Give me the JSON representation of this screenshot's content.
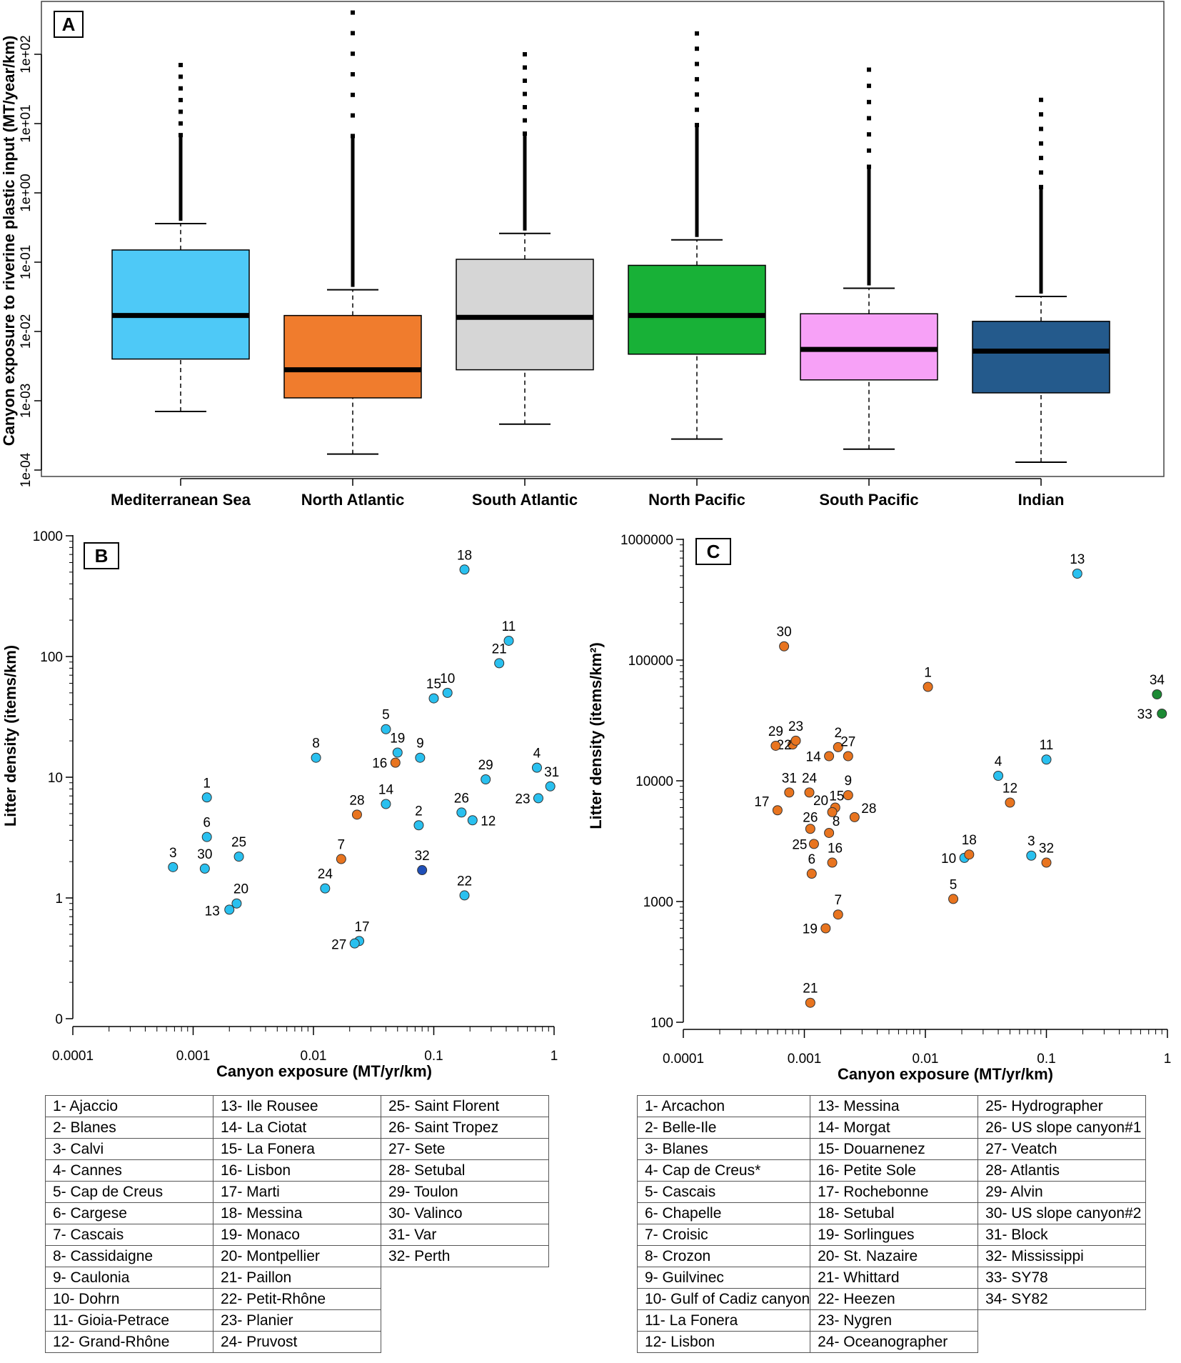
{
  "panel_a": {
    "label": "A",
    "ylabel": "Canyon exposure to riverine plastic input (MT/year/km)",
    "y_ticks": [
      "1e-04",
      "1e-03",
      "1e-02",
      "1e-01",
      "1e+00",
      "1e+01",
      "1e+02"
    ],
    "chart_data": {
      "type": "box",
      "yscale": "log10",
      "ylim": [
        0.0001,
        500
      ],
      "boxes": [
        {
          "name": "Mediterranean Sea",
          "color": "#4ec9f7",
          "whisker_low": 0.0007,
          "q1": 0.004,
          "median": 0.017,
          "q3": 0.15,
          "whisker_high": 0.36,
          "outlier_max": 70
        },
        {
          "name": "North Atlantic",
          "color": "#f07c2d",
          "whisker_low": 0.00017,
          "q1": 0.0011,
          "median": 0.0028,
          "q3": 0.017,
          "whisker_high": 0.04,
          "outlier_max": 400
        },
        {
          "name": "South Atlantic",
          "color": "#d6d6d6",
          "whisker_low": 0.00046,
          "q1": 0.0028,
          "median": 0.016,
          "q3": 0.11,
          "whisker_high": 0.26,
          "outlier_max": 100
        },
        {
          "name": "North Pacific",
          "color": "#18b137",
          "whisker_low": 0.00028,
          "q1": 0.0047,
          "median": 0.017,
          "q3": 0.09,
          "whisker_high": 0.21,
          "outlier_max": 200
        },
        {
          "name": "South Pacific",
          "color": "#f7a1f7",
          "whisker_low": 0.0002,
          "q1": 0.002,
          "median": 0.0055,
          "q3": 0.018,
          "whisker_high": 0.042,
          "outlier_max": 60
        },
        {
          "name": "Indian",
          "color": "#245a8c",
          "whisker_low": 0.00013,
          "q1": 0.0013,
          "median": 0.0052,
          "q3": 0.014,
          "whisker_high": 0.032,
          "outlier_max": 22
        }
      ]
    }
  },
  "panel_b": {
    "label": "B",
    "xlabel": "Canyon exposure (MT/yr/km)",
    "ylabel": "Litter density (items/km)",
    "x_ticks": [
      "0.0001",
      "0.001",
      "0.01",
      "0.1",
      "1"
    ],
    "y_ticks": [
      "0",
      "1",
      "10",
      "100",
      "1000"
    ],
    "chart_data": {
      "type": "scatter",
      "xscale": "log10",
      "yscale": "log10",
      "xlim": [
        0.0001,
        1
      ],
      "points": [
        {
          "id": "1",
          "x": 0.0013,
          "y": 6.8,
          "color": "#29c0ef"
        },
        {
          "id": "2",
          "x": 0.075,
          "y": 4.0,
          "color": "#29c0ef"
        },
        {
          "id": "3",
          "x": 0.00068,
          "y": 1.8,
          "color": "#29c0ef"
        },
        {
          "id": "4",
          "x": 0.72,
          "y": 12,
          "color": "#29c0ef"
        },
        {
          "id": "5",
          "x": 0.04,
          "y": 25,
          "color": "#29c0ef"
        },
        {
          "id": "6",
          "x": 0.0013,
          "y": 3.2,
          "color": "#29c0ef"
        },
        {
          "id": "7",
          "x": 0.017,
          "y": 2.1,
          "color": "#e8741f"
        },
        {
          "id": "8",
          "x": 0.0105,
          "y": 14.5,
          "color": "#29c0ef"
        },
        {
          "id": "9",
          "x": 0.077,
          "y": 14.5,
          "color": "#29c0ef"
        },
        {
          "id": "10",
          "x": 0.13,
          "y": 50,
          "color": "#29c0ef"
        },
        {
          "id": "11",
          "x": 0.42,
          "y": 135,
          "color": "#29c0ef"
        },
        {
          "id": "12",
          "x": 0.21,
          "y": 4.4,
          "color": "#29c0ef"
        },
        {
          "id": "13",
          "x": 0.002,
          "y": 0.8,
          "color": "#29c0ef"
        },
        {
          "id": "14",
          "x": 0.04,
          "y": 6.0,
          "color": "#29c0ef"
        },
        {
          "id": "15",
          "x": 0.1,
          "y": 45,
          "color": "#29c0ef"
        },
        {
          "id": "16",
          "x": 0.048,
          "y": 13.2,
          "color": "#e8741f"
        },
        {
          "id": "17",
          "x": 0.024,
          "y": 0.44,
          "color": "#29c0ef"
        },
        {
          "id": "18",
          "x": 0.18,
          "y": 525,
          "color": "#29c0ef"
        },
        {
          "id": "19",
          "x": 0.05,
          "y": 16,
          "color": "#29c0ef"
        },
        {
          "id": "20",
          "x": 0.0023,
          "y": 0.9,
          "color": "#29c0ef"
        },
        {
          "id": "21",
          "x": 0.35,
          "y": 88,
          "color": "#29c0ef"
        },
        {
          "id": "22",
          "x": 0.18,
          "y": 1.05,
          "color": "#29c0ef"
        },
        {
          "id": "23",
          "x": 0.74,
          "y": 6.7,
          "color": "#29c0ef"
        },
        {
          "id": "24",
          "x": 0.0125,
          "y": 1.2,
          "color": "#29c0ef"
        },
        {
          "id": "25",
          "x": 0.0024,
          "y": 2.2,
          "color": "#29c0ef"
        },
        {
          "id": "26",
          "x": 0.17,
          "y": 5.1,
          "color": "#29c0ef"
        },
        {
          "id": "27",
          "x": 0.022,
          "y": 0.42,
          "color": "#29c0ef"
        },
        {
          "id": "28",
          "x": 0.023,
          "y": 4.9,
          "color": "#e8741f"
        },
        {
          "id": "29",
          "x": 0.27,
          "y": 9.6,
          "color": "#29c0ef"
        },
        {
          "id": "30",
          "x": 0.00125,
          "y": 1.75,
          "color": "#29c0ef"
        },
        {
          "id": "31",
          "x": 0.93,
          "y": 8.4,
          "color": "#29c0ef"
        },
        {
          "id": "32",
          "x": 0.08,
          "y": 1.7,
          "color": "#1f4fb8"
        }
      ]
    }
  },
  "panel_c": {
    "label": "C",
    "xlabel": "Canyon exposure (MT/yr/km)",
    "ylabel": "Litter density (items/km²)",
    "x_ticks": [
      "0.0001",
      "0.001",
      "0.01",
      "0.1",
      "1"
    ],
    "y_ticks": [
      "100",
      "1000",
      "10000",
      "100000",
      "1000000"
    ],
    "chart_data": {
      "type": "scatter",
      "xscale": "log10",
      "yscale": "log10",
      "xlim": [
        0.0001,
        1
      ],
      "ylim": [
        100,
        1000000
      ],
      "points": [
        {
          "id": "1",
          "x": 0.0105,
          "y": 60000,
          "color": "#e8741f"
        },
        {
          "id": "2",
          "x": 0.0019,
          "y": 19000,
          "color": "#e8741f"
        },
        {
          "id": "3",
          "x": 0.075,
          "y": 2400,
          "color": "#29c0ef"
        },
        {
          "id": "4",
          "x": 0.04,
          "y": 11000,
          "color": "#29c0ef"
        },
        {
          "id": "5",
          "x": 0.017,
          "y": 1050,
          "color": "#e8741f"
        },
        {
          "id": "6",
          "x": 0.00115,
          "y": 1700,
          "color": "#e8741f"
        },
        {
          "id": "7",
          "x": 0.0019,
          "y": 780,
          "color": "#e8741f"
        },
        {
          "id": "8",
          "x": 0.0016,
          "y": 3700,
          "color": "#e8741f"
        },
        {
          "id": "9",
          "x": 0.0023,
          "y": 7600,
          "color": "#e8741f"
        },
        {
          "id": "10",
          "x": 0.021,
          "y": 2300,
          "color": "#29c0ef"
        },
        {
          "id": "11",
          "x": 0.1,
          "y": 15000,
          "color": "#29c0ef"
        },
        {
          "id": "12",
          "x": 0.05,
          "y": 6600,
          "color": "#e8741f"
        },
        {
          "id": "13",
          "x": 0.18,
          "y": 520000,
          "color": "#29c0ef"
        },
        {
          "id": "14",
          "x": 0.0016,
          "y": 16000,
          "color": "#e8741f"
        },
        {
          "id": "15",
          "x": 0.0018,
          "y": 6000,
          "color": "#e8741f"
        },
        {
          "id": "16",
          "x": 0.0017,
          "y": 2100,
          "color": "#e8741f"
        },
        {
          "id": "17",
          "x": 0.0006,
          "y": 5700,
          "color": "#e8741f"
        },
        {
          "id": "18",
          "x": 0.023,
          "y": 2450,
          "color": "#e8741f"
        },
        {
          "id": "19",
          "x": 0.0015,
          "y": 600,
          "color": "#e8741f"
        },
        {
          "id": "20",
          "x": 0.0017,
          "y": 5500,
          "color": "#e8741f"
        },
        {
          "id": "21",
          "x": 0.00112,
          "y": 145,
          "color": "#e8741f"
        },
        {
          "id": "22",
          "x": 0.0008,
          "y": 20000,
          "color": "#e8741f"
        },
        {
          "id": "23",
          "x": 0.00085,
          "y": 21500,
          "color": "#e8741f"
        },
        {
          "id": "24",
          "x": 0.0011,
          "y": 8000,
          "color": "#e8741f"
        },
        {
          "id": "25",
          "x": 0.0012,
          "y": 3000,
          "color": "#e8741f"
        },
        {
          "id": "26",
          "x": 0.00112,
          "y": 4000,
          "color": "#e8741f"
        },
        {
          "id": "27",
          "x": 0.0023,
          "y": 16000,
          "color": "#e8741f"
        },
        {
          "id": "28",
          "x": 0.0026,
          "y": 5000,
          "color": "#e8741f"
        },
        {
          "id": "29",
          "x": 0.00058,
          "y": 19500,
          "color": "#e8741f"
        },
        {
          "id": "30",
          "x": 0.00068,
          "y": 130000,
          "color": "#e8741f"
        },
        {
          "id": "31",
          "x": 0.00075,
          "y": 8000,
          "color": "#e8741f"
        },
        {
          "id": "32",
          "x": 0.1,
          "y": 2100,
          "color": "#e8741f"
        },
        {
          "id": "33",
          "x": 0.9,
          "y": 36000,
          "color": "#1c8a34"
        },
        {
          "id": "34",
          "x": 0.82,
          "y": 52000,
          "color": "#1c8a34"
        }
      ]
    }
  },
  "legend_b": [
    [
      "1- Ajaccio",
      "13- Ile Rousee",
      "25- Saint Florent"
    ],
    [
      "2- Blanes",
      "14- La Ciotat",
      "26- Saint Tropez"
    ],
    [
      "3- Calvi",
      "15- La Fonera",
      "27- Sete"
    ],
    [
      "4- Cannes",
      "16- Lisbon",
      "28- Setubal"
    ],
    [
      "5- Cap de Creus",
      "17- Marti",
      "29- Toulon"
    ],
    [
      "6- Cargese",
      "18- Messina",
      "30- Valinco"
    ],
    [
      "7- Cascais",
      "19- Monaco",
      "31- Var"
    ],
    [
      "8- Cassidaigne",
      "20- Montpellier",
      "32- Perth"
    ],
    [
      "9- Caulonia",
      "21- Paillon",
      ""
    ],
    [
      "10- Dohrn",
      "22- Petit-Rhône",
      ""
    ],
    [
      "11- Gioia-Petrace",
      "23- Planier",
      ""
    ],
    [
      "12- Grand-Rhône",
      "24- Pruvost",
      ""
    ]
  ],
  "legend_c": [
    [
      "1- Arcachon",
      "13- Messina",
      "25- Hydrographer"
    ],
    [
      "2- Belle-Ile",
      "14- Morgat",
      "26- US slope canyon#1"
    ],
    [
      "3- Blanes",
      "15- Douarnenez",
      "27- Veatch"
    ],
    [
      "4- Cap de Creus*",
      "16- Petite Sole",
      "28- Atlantis"
    ],
    [
      "5- Cascais",
      "17- Rochebonne",
      "29- Alvin"
    ],
    [
      "6- Chapelle",
      "18- Setubal",
      "30- US slope canyon#2"
    ],
    [
      "7- Croisic",
      "19- Sorlingues",
      "31- Block"
    ],
    [
      "8- Crozon",
      "20- St. Nazaire",
      "32- Mississippi"
    ],
    [
      "9- Guilvinec",
      "21- Whittard",
      "33- SY78"
    ],
    [
      "10- Gulf of Cadiz canyon",
      "22- Heezen",
      "34- SY82"
    ],
    [
      "11- La Fonera",
      "23- Nygren",
      ""
    ],
    [
      "12- Lisbon",
      "24- Oceanographer",
      ""
    ]
  ]
}
